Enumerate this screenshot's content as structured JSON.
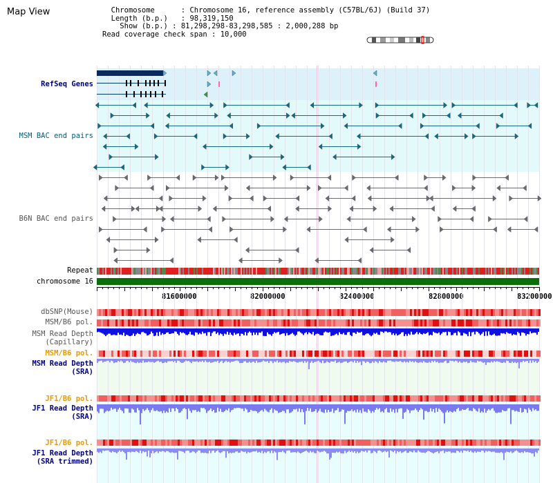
{
  "app": {
    "title": "Map View"
  },
  "info": {
    "chromosome_key": "Chromosome",
    "chromosome_value": "Chromosome 16, reference assembly (C57BL/6J) (Build 37)",
    "length_key": "Length (b.p.)",
    "length_value": "98,319,150",
    "show_key": "Show (b.p.)",
    "show_value": "81,298,298-83,298,585 : 2,000,288 bp",
    "coverage_key": "Read coverage check span",
    "coverage_value": "10,000"
  },
  "tracks": {
    "refseq": "RefSeq Genes",
    "msm_bac": "MSM BAC end pairs",
    "b6n_bac": "B6N BAC end pairs",
    "repeat": "Repeat",
    "chromosome": "chromosome 16",
    "dbsnp": "dbSNP(Mouse)",
    "msm_b6_pol_1": "MSM/B6 pol.",
    "msm_depth_cap": "MSM Read Depth\n(Capillary)",
    "msm_b6_pol_2": "MSM/B6 pol.",
    "msm_depth_sra": "MSM Read Depth\n(SRA)",
    "jf1_b6_pol_1": "JF1/B6 pol.",
    "jf1_depth_sra": "JF1 Read Depth\n(SRA)",
    "jf1_b6_pol_2": "JF1/B6 pol.",
    "jf1_depth_trimmed": "JF1 Read Depth\n(SRA trimmed)"
  },
  "axis": {
    "ticks": [
      "81600000",
      "82000000",
      "82400000",
      "82800000",
      "83200000"
    ]
  },
  "colors": {
    "refseq_bg": "#dff2fb",
    "msm_bg": "#e2fafa",
    "b6n_bg": "#ffffff",
    "chrom_green": "#0b6e0b",
    "depth_blue": "#1414e6",
    "depth_light": "#8c8cf0",
    "pol_red": "#f04040"
  }
}
